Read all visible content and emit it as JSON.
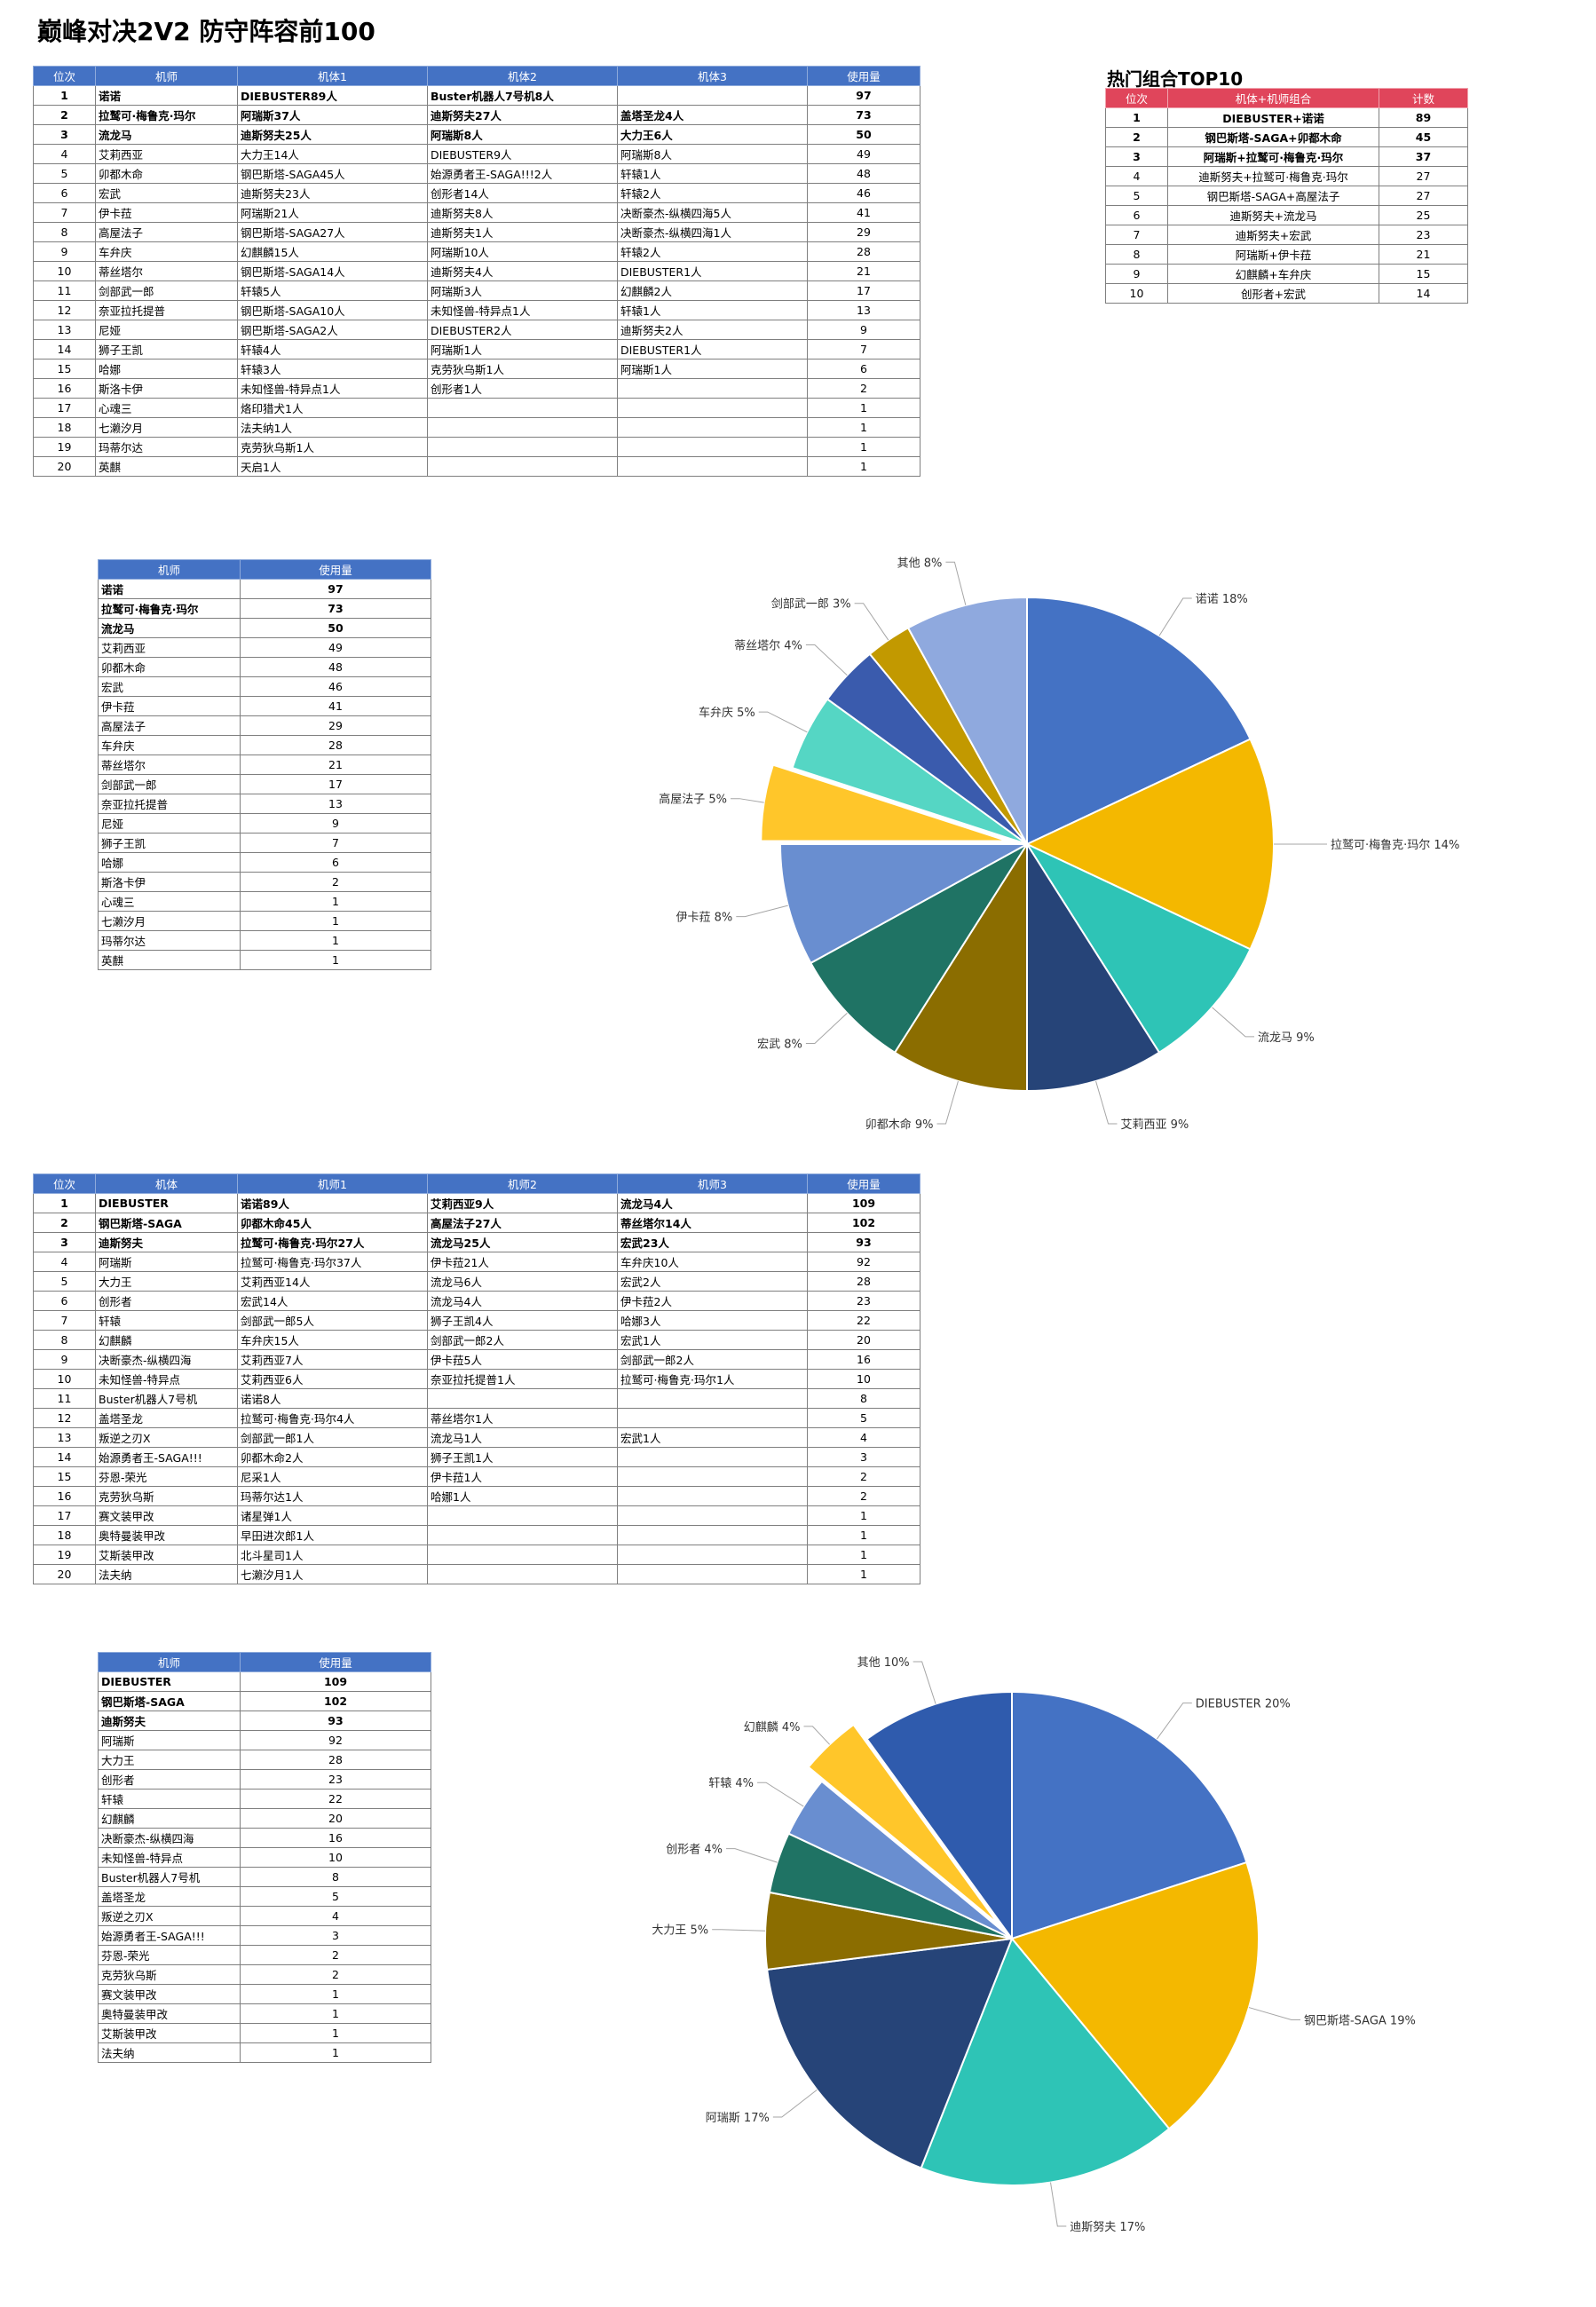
{
  "title": "巅峰对决2V2 防守阵容前100",
  "top_combo_title": "热门组合TOP10",
  "table1": {
    "headers": [
      "位次",
      "机师",
      "机体1",
      "机体2",
      "机体3",
      "使用量"
    ],
    "rows": [
      [
        "1",
        "诺诺",
        "DIEBUSTER89人",
        "Buster机器人7号机8人",
        "",
        "97"
      ],
      [
        "2",
        "拉鹫可·梅鲁克·玛尔",
        "阿瑞斯37人",
        "迪斯努夫27人",
        "盖塔圣龙4人",
        "73"
      ],
      [
        "3",
        "流龙马",
        "迪斯努夫25人",
        "阿瑞斯8人",
        "大力王6人",
        "50"
      ],
      [
        "4",
        "艾莉西亚",
        "大力王14人",
        "DIEBUSTER9人",
        "阿瑞斯8人",
        "49"
      ],
      [
        "5",
        "卯都木命",
        "钢巴斯塔-SAGA45人",
        "始源勇者王-SAGA!!!2人",
        "轩辕1人",
        "48"
      ],
      [
        "6",
        "宏武",
        "迪斯努夫23人",
        "创形者14人",
        "轩辕2人",
        "46"
      ],
      [
        "7",
        "伊卡菈",
        "阿瑞斯21人",
        "迪斯努夫8人",
        "决断豪杰-纵横四海5人",
        "41"
      ],
      [
        "8",
        "高屋法子",
        "钢巴斯塔-SAGA27人",
        "迪斯努夫1人",
        "决断豪杰-纵横四海1人",
        "29"
      ],
      [
        "9",
        "车弁庆",
        "幻麒麟15人",
        "阿瑞斯10人",
        "轩辕2人",
        "28"
      ],
      [
        "10",
        "蒂丝塔尔",
        "钢巴斯塔-SAGA14人",
        "迪斯努夫4人",
        "DIEBUSTER1人",
        "21"
      ],
      [
        "11",
        "剑部武一郎",
        "轩辕5人",
        "阿瑞斯3人",
        "幻麒麟2人",
        "17"
      ],
      [
        "12",
        "奈亚拉托提普",
        "钢巴斯塔-SAGA10人",
        "未知怪兽-特异点1人",
        "轩辕1人",
        "13"
      ],
      [
        "13",
        "尼娅",
        "钢巴斯塔-SAGA2人",
        "DIEBUSTER2人",
        "迪斯努夫2人",
        "9"
      ],
      [
        "14",
        "狮子王凯",
        "轩辕4人",
        "阿瑞斯1人",
        "DIEBUSTER1人",
        "7"
      ],
      [
        "15",
        "哈娜",
        "轩辕3人",
        "克劳狄乌斯1人",
        "阿瑞斯1人",
        "6"
      ],
      [
        "16",
        "斯洛卡伊",
        "未知怪兽-特异点1人",
        "创形者1人",
        "",
        "2"
      ],
      [
        "17",
        "心魂三",
        "烙印猎犬1人",
        "",
        "",
        "1"
      ],
      [
        "18",
        "七濑汐月",
        "法夫纳1人",
        "",
        "",
        "1"
      ],
      [
        "19",
        "玛蒂尔达",
        "克劳狄乌斯1人",
        "",
        "",
        "1"
      ],
      [
        "20",
        "英麒",
        "天启1人",
        "",
        "",
        "1"
      ]
    ]
  },
  "combo_table": {
    "headers": [
      "位次",
      "机体+机师组合",
      "计数"
    ],
    "rows": [
      [
        "1",
        "DIEBUSTER+诺诺",
        "89"
      ],
      [
        "2",
        "钢巴斯塔-SAGA+卯都木命",
        "45"
      ],
      [
        "3",
        "阿瑞斯+拉鹫可·梅鲁克·玛尔",
        "37"
      ],
      [
        "4",
        "迪斯努夫+拉鹫可·梅鲁克·玛尔",
        "27"
      ],
      [
        "5",
        "钢巴斯塔-SAGA+高屋法子",
        "27"
      ],
      [
        "6",
        "迪斯努夫+流龙马",
        "25"
      ],
      [
        "7",
        "迪斯努夫+宏武",
        "23"
      ],
      [
        "8",
        "阿瑞斯+伊卡菈",
        "21"
      ],
      [
        "9",
        "幻麒麟+车弁庆",
        "15"
      ],
      [
        "10",
        "创形者+宏武",
        "14"
      ]
    ]
  },
  "pilot_usage": {
    "headers": [
      "机师",
      "使用量"
    ],
    "rows": [
      [
        "诺诺",
        "97"
      ],
      [
        "拉鹫可·梅鲁克·玛尔",
        "73"
      ],
      [
        "流龙马",
        "50"
      ],
      [
        "艾莉西亚",
        "49"
      ],
      [
        "卯都木命",
        "48"
      ],
      [
        "宏武",
        "46"
      ],
      [
        "伊卡菈",
        "41"
      ],
      [
        "高屋法子",
        "29"
      ],
      [
        "车弁庆",
        "28"
      ],
      [
        "蒂丝塔尔",
        "21"
      ],
      [
        "剑部武一郎",
        "17"
      ],
      [
        "奈亚拉托提普",
        "13"
      ],
      [
        "尼娅",
        "9"
      ],
      [
        "狮子王凯",
        "7"
      ],
      [
        "哈娜",
        "6"
      ],
      [
        "斯洛卡伊",
        "2"
      ],
      [
        "心魂三",
        "1"
      ],
      [
        "七濑汐月",
        "1"
      ],
      [
        "玛蒂尔达",
        "1"
      ],
      [
        "英麒",
        "1"
      ]
    ]
  },
  "table2": {
    "headers": [
      "位次",
      "机体",
      "机师1",
      "机师2",
      "机师3",
      "使用量"
    ],
    "rows": [
      [
        "1",
        "DIEBUSTER",
        "诺诺89人",
        "艾莉西亚9人",
        "流龙马4人",
        "109"
      ],
      [
        "2",
        "钢巴斯塔-SAGA",
        "卯都木命45人",
        "高屋法子27人",
        "蒂丝塔尔14人",
        "102"
      ],
      [
        "3",
        "迪斯努夫",
        "拉鹫可·梅鲁克·玛尔27人",
        "流龙马25人",
        "宏武23人",
        "93"
      ],
      [
        "4",
        "阿瑞斯",
        "拉鹫可·梅鲁克·玛尔37人",
        "伊卡菈21人",
        "车弁庆10人",
        "92"
      ],
      [
        "5",
        "大力王",
        "艾莉西亚14人",
        "流龙马6人",
        "宏武2人",
        "28"
      ],
      [
        "6",
        "创形者",
        "宏武14人",
        "流龙马4人",
        "伊卡菈2人",
        "23"
      ],
      [
        "7",
        "轩辕",
        "剑部武一郎5人",
        "狮子王凯4人",
        "哈娜3人",
        "22"
      ],
      [
        "8",
        "幻麒麟",
        "车弁庆15人",
        "剑部武一郎2人",
        "宏武1人",
        "20"
      ],
      [
        "9",
        "决断豪杰-纵横四海",
        "艾莉西亚7人",
        "伊卡菈5人",
        "剑部武一郎2人",
        "16"
      ],
      [
        "10",
        "未知怪兽-特异点",
        "艾莉西亚6人",
        "奈亚拉托提普1人",
        "拉鹫可·梅鲁克·玛尔1人",
        "10"
      ],
      [
        "11",
        "Buster机器人7号机",
        "诺诺8人",
        "",
        "",
        "8"
      ],
      [
        "12",
        "盖塔圣龙",
        "拉鹫可·梅鲁克·玛尔4人",
        "蒂丝塔尔1人",
        "",
        "5"
      ],
      [
        "13",
        "叛逆之刃X",
        "剑部武一郎1人",
        "流龙马1人",
        "宏武1人",
        "4"
      ],
      [
        "14",
        "始源勇者王-SAGA!!!",
        "卯都木命2人",
        "狮子王凯1人",
        "",
        "3"
      ],
      [
        "15",
        "芬恩-荣光",
        "尼采1人",
        "伊卡菈1人",
        "",
        "2"
      ],
      [
        "16",
        "克劳狄乌斯",
        "玛蒂尔达1人",
        "哈娜1人",
        "",
        "2"
      ],
      [
        "17",
        "赛文装甲改",
        "诸星弹1人",
        "",
        "",
        "1"
      ],
      [
        "18",
        "奥特曼装甲改",
        "早田进次郎1人",
        "",
        "",
        "1"
      ],
      [
        "19",
        "艾斯装甲改",
        "北斗星司1人",
        "",
        "",
        "1"
      ],
      [
        "20",
        "法夫纳",
        "七濑汐月1人",
        "",
        "",
        "1"
      ]
    ]
  },
  "unit_usage": {
    "headers": [
      "机师",
      "使用量"
    ],
    "rows": [
      [
        "DIEBUSTER",
        "109"
      ],
      [
        "钢巴斯塔-SAGA",
        "102"
      ],
      [
        "迪斯努夫",
        "93"
      ],
      [
        "阿瑞斯",
        "92"
      ],
      [
        "大力王",
        "28"
      ],
      [
        "创形者",
        "23"
      ],
      [
        "轩辕",
        "22"
      ],
      [
        "幻麒麟",
        "20"
      ],
      [
        "决断豪杰-纵横四海",
        "16"
      ],
      [
        "未知怪兽-特异点",
        "10"
      ],
      [
        "Buster机器人7号机",
        "8"
      ],
      [
        "盖塔圣龙",
        "5"
      ],
      [
        "叛逆之刃X",
        "4"
      ],
      [
        "始源勇者王-SAGA!!!",
        "3"
      ],
      [
        "芬恩-荣光",
        "2"
      ],
      [
        "克劳狄乌斯",
        "2"
      ],
      [
        "赛文装甲改",
        "1"
      ],
      [
        "奥特曼装甲改",
        "1"
      ],
      [
        "艾斯装甲改",
        "1"
      ],
      [
        "法夫纳",
        "1"
      ]
    ]
  },
  "chart_data": [
    {
      "type": "pie",
      "labels": [
        "诺诺",
        "拉鹫可·梅鲁克·玛尔",
        "流龙马",
        "艾莉西亚",
        "卯都木命",
        "宏武",
        "伊卡菈",
        "高屋法子",
        "车弁庆",
        "蒂丝塔尔",
        "剑部武一郎",
        "其他"
      ],
      "values": [
        18,
        14,
        9,
        9,
        9,
        8,
        8,
        5,
        5,
        4,
        3,
        8
      ],
      "value_labels": [
        "诺诺 18%",
        "拉鹫可·梅鲁克·玛尔 14%",
        "流龙马 9%",
        "艾莉西亚 9%",
        "卯都木命 9%",
        "宏武 8%",
        "伊卡菈 8%",
        "高屋法子 5%",
        "车弁庆 5%",
        "蒂丝塔尔 4%",
        "剑部武一郎 3%",
        "其他 8%"
      ],
      "colors": [
        "#4472c4",
        "#f4b800",
        "#2ec4b6",
        "#264478",
        "#8b6d00",
        "#1f7364",
        "#698ed0",
        "#ffc62a",
        "#55d6c4",
        "#3a5bad",
        "#c29900",
        "#8fa9de"
      ],
      "exploded_label": "高屋法子"
    },
    {
      "type": "pie",
      "labels": [
        "DIEBUSTER",
        "钢巴斯塔-SAGA",
        "迪斯努夫",
        "阿瑞斯",
        "大力王",
        "创形者",
        "轩辕",
        "幻麒麟",
        "其他"
      ],
      "values": [
        20,
        19,
        17,
        17,
        5,
        4,
        4,
        4,
        10
      ],
      "value_labels": [
        "DIEBUSTER 20%",
        "钢巴斯塔-SAGA 19%",
        "迪斯努夫 17%",
        "阿瑞斯 17%",
        "大力王 5%",
        "创形者 4%",
        "轩辕 4%",
        "幻麒麟 4%",
        "其他 10%"
      ],
      "colors": [
        "#4472c4",
        "#f4b800",
        "#2ec4b6",
        "#264478",
        "#8b6d00",
        "#1f7364",
        "#698ed0",
        "#ffc62a",
        "#2f5bad"
      ],
      "exploded_label": "幻麒麟"
    }
  ]
}
